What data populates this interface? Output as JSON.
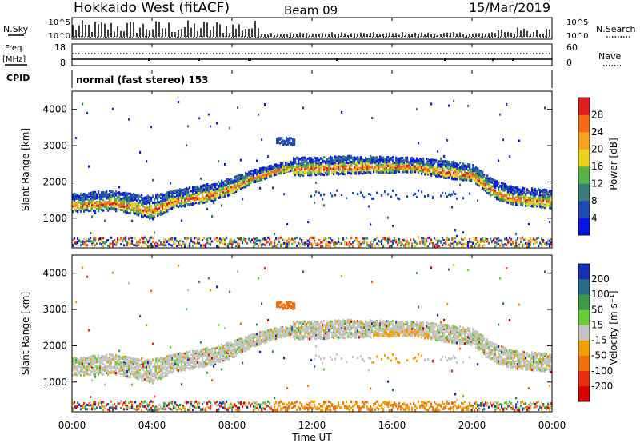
{
  "header": {
    "radar": "Hokkaido West (fitACF)",
    "beam": "Beam 09",
    "date": "15/Mar/2019"
  },
  "noise_panel": {
    "left_label": "N.Sky",
    "right_label": "N.Search",
    "ticks_left": [
      "10^5",
      "10^0"
    ],
    "ticks_right": [
      "10^5",
      "10^0"
    ]
  },
  "freq_panel": {
    "left_label_1": "Freq.",
    "left_label_2": "[MHz]",
    "right_label": "Nave",
    "ticks_left": [
      "18",
      "8"
    ],
    "ticks_right": [
      "60",
      "0"
    ]
  },
  "cpid_panel": {
    "left_label": "CPID",
    "mode_text": "normal (fast stereo) 153"
  },
  "chart_data": [
    {
      "type": "heatmap",
      "name": "power",
      "ylabel": "Slant Range [km]",
      "yticks": [
        "1000",
        "2000",
        "3000",
        "4000"
      ],
      "ylim": [
        180,
        4500
      ],
      "colorbar_label": "Power [dB]",
      "colorbar_ticks": [
        "4",
        "8",
        "12",
        "16",
        "20",
        "24",
        "28"
      ],
      "colorbar_colors": [
        "#0a14e6",
        "#1e4ab4",
        "#3a7d78",
        "#58b448",
        "#e8d21e",
        "#f7a21c",
        "#f46a18",
        "#e21d1d"
      ]
    },
    {
      "type": "heatmap",
      "name": "velocity",
      "ylabel": "Slant Range [km]",
      "yticks": [
        "1000",
        "2000",
        "3000",
        "4000"
      ],
      "ylim": [
        180,
        4500
      ],
      "colorbar_label": "Velocity [m s⁻¹]",
      "colorbar_ticks": [
        "200",
        "100",
        "50",
        "15",
        "-15",
        "-50",
        "-100",
        "-200"
      ],
      "colorbar_colors": [
        "#1a2fb8",
        "#2a6a8a",
        "#3a9a4a",
        "#6acc3a",
        "#c4c4c4",
        "#f0a000",
        "#f07010",
        "#e63010",
        "#d80000"
      ]
    }
  ],
  "xaxis": {
    "label": "Time UT",
    "ticks": [
      "00:00",
      "04:00",
      "08:00",
      "12:00",
      "16:00",
      "20:00",
      "00:00"
    ]
  }
}
